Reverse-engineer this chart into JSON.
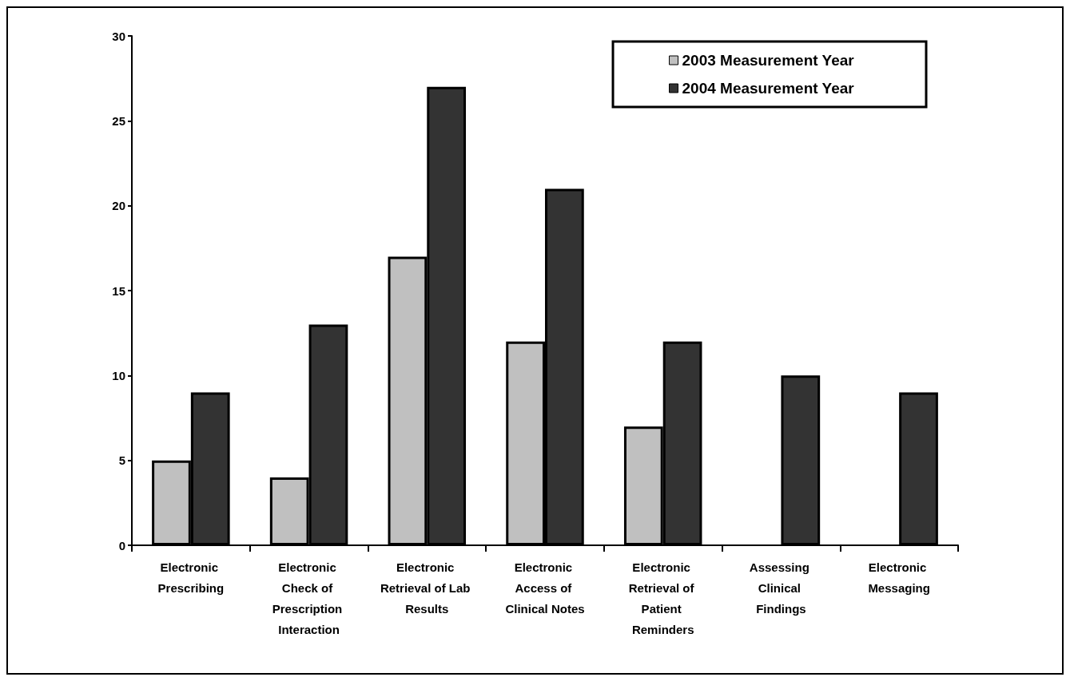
{
  "chart_data": {
    "type": "bar",
    "categories": [
      "Electronic Prescribing",
      "Electronic Check of Prescription Interaction",
      "Electronic Retrieval of Lab Results",
      "Electronic Access of Clinical Notes",
      "Electronic Retrieval of Patient Reminders",
      "Assessing Clinical Findings",
      "Electronic Messaging"
    ],
    "series": [
      {
        "name": "2003 Measurement Year",
        "color": "#c0c0c0",
        "values": [
          5,
          4,
          17,
          12,
          7,
          null,
          null
        ]
      },
      {
        "name": "2004 Measurement Year",
        "color": "#333333",
        "values": [
          9,
          13,
          27,
          21,
          12,
          10,
          9
        ]
      }
    ],
    "ylim": [
      0,
      30
    ],
    "yticks": [
      0,
      5,
      10,
      15,
      20,
      25,
      30
    ],
    "grid": false,
    "legend": "top right"
  }
}
